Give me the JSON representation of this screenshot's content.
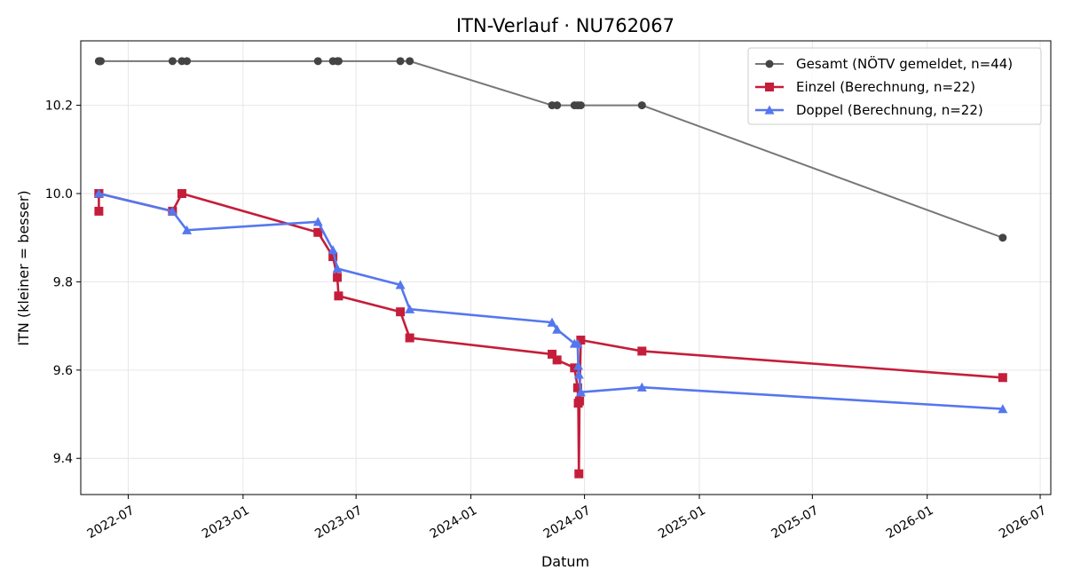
{
  "chart_data": {
    "type": "line",
    "title": "ITN-Verlauf · NU762067",
    "xlabel": "Datum",
    "ylabel": "ITN  (kleiner = besser)",
    "x_tick_labels": [
      "2022-07",
      "2023-01",
      "2023-07",
      "2024-01",
      "2024-07",
      "2025-01",
      "2025-07",
      "2026-01",
      "2026-07"
    ],
    "y_tick_labels": [
      "9.4",
      "9.6",
      "9.8",
      "10.0",
      "10.2"
    ],
    "xlim": [
      "2022-04-16",
      "2026-07-18"
    ],
    "ylim": [
      9.318,
      10.346
    ],
    "grid": true,
    "legend_position": "top-right",
    "series": [
      {
        "name": "Gesamt (NÖTV gemeldet, n=44)",
        "color": "#777777",
        "marker_color": "#444444",
        "marker": "circle",
        "points": [
          [
            "2022-05-15",
            10.3
          ],
          [
            "2022-05-16",
            10.3
          ],
          [
            "2022-05-17",
            10.3
          ],
          [
            "2022-05-18",
            10.3
          ],
          [
            "2022-09-10",
            10.3
          ],
          [
            "2022-09-25",
            10.3
          ],
          [
            "2022-10-03",
            10.3
          ],
          [
            "2023-05-01",
            10.3
          ],
          [
            "2023-05-25",
            10.3
          ],
          [
            "2023-06-01",
            10.3
          ],
          [
            "2023-06-03",
            10.3
          ],
          [
            "2023-09-10",
            10.3
          ],
          [
            "2023-09-25",
            10.3
          ],
          [
            "2024-05-10",
            10.2
          ],
          [
            "2024-05-18",
            10.2
          ],
          [
            "2024-06-15",
            10.2
          ],
          [
            "2024-06-20",
            10.2
          ],
          [
            "2024-06-25",
            10.2
          ],
          [
            "2024-10-01",
            10.2
          ],
          [
            "2026-05-02",
            9.9
          ]
        ]
      },
      {
        "name": "Einzel (Berechnung, n=22)",
        "color": "#c41e3a",
        "marker_color": "#c41e3a",
        "marker": "square",
        "points": [
          [
            "2022-05-15",
            10.0
          ],
          [
            "2022-05-15",
            9.96
          ],
          [
            "2022-05-15",
            10.0
          ],
          [
            "2022-09-10",
            9.96
          ],
          [
            "2022-09-25",
            10.0
          ],
          [
            "2023-05-01",
            9.912
          ],
          [
            "2023-05-25",
            9.857
          ],
          [
            "2023-06-01",
            9.81
          ],
          [
            "2023-06-03",
            9.768
          ],
          [
            "2023-09-10",
            9.732
          ],
          [
            "2023-09-25",
            9.673
          ],
          [
            "2024-05-10",
            9.636
          ],
          [
            "2024-05-18",
            9.623
          ],
          [
            "2024-06-15",
            9.605
          ],
          [
            "2024-06-20",
            9.56
          ],
          [
            "2024-06-21",
            9.525
          ],
          [
            "2024-06-22",
            9.365
          ],
          [
            "2024-06-23",
            9.53
          ],
          [
            "2024-06-25",
            9.668
          ],
          [
            "2024-10-01",
            9.643
          ],
          [
            "2026-05-02",
            9.583
          ]
        ]
      },
      {
        "name": "Doppel (Berechnung, n=22)",
        "color": "#5577ee",
        "marker_color": "#5577ee",
        "marker": "triangle",
        "points": [
          [
            "2022-05-15",
            10.0
          ],
          [
            "2022-09-10",
            9.96
          ],
          [
            "2022-10-03",
            9.917
          ],
          [
            "2023-05-01",
            9.936
          ],
          [
            "2023-05-25",
            9.872
          ],
          [
            "2023-06-01",
            9.83
          ],
          [
            "2023-09-10",
            9.793
          ],
          [
            "2023-09-25",
            9.738
          ],
          [
            "2024-05-10",
            9.708
          ],
          [
            "2024-05-18",
            9.692
          ],
          [
            "2024-06-15",
            9.66
          ],
          [
            "2024-06-20",
            9.66
          ],
          [
            "2024-06-21",
            9.61
          ],
          [
            "2024-06-22",
            9.59
          ],
          [
            "2024-06-25",
            9.55
          ],
          [
            "2024-10-01",
            9.561
          ],
          [
            "2026-05-02",
            9.512
          ]
        ]
      }
    ]
  }
}
